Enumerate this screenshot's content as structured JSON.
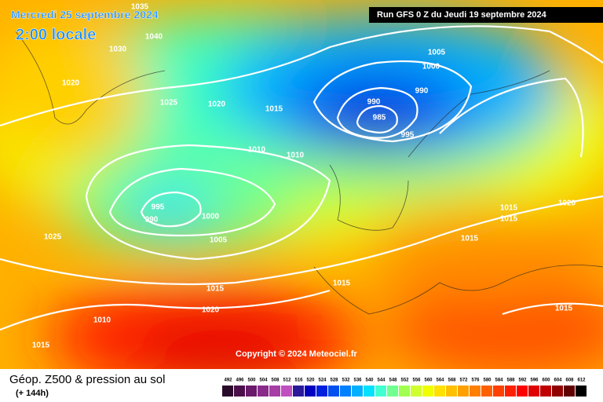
{
  "header": {
    "date": "Mercredi 25 septembre 2024",
    "time": "2:00 locale",
    "run": "Run GFS 0 Z du Jeudi 19 septembre 2024",
    "copyright": "Copyright © 2024 Meteociel.fr"
  },
  "footer": {
    "title": "Géop. Z500 & pression au sol",
    "lead": "(+ 144h)"
  },
  "isobar_labels": [
    1035,
    1040,
    1030,
    1020,
    1025,
    1020,
    1015,
    1005,
    1000,
    990,
    990,
    985,
    995,
    1010,
    1010,
    995,
    990,
    1000,
    1005,
    1025,
    1015,
    1020,
    1015,
    1015,
    1015,
    1015,
    1020,
    1010,
    1015,
    1015
  ],
  "colorbar": {
    "values": [
      492,
      496,
      500,
      504,
      508,
      512,
      516,
      520,
      524,
      528,
      532,
      536,
      540,
      544,
      548,
      552,
      556,
      560,
      564,
      568,
      572,
      576,
      580,
      584,
      588,
      592,
      596,
      600,
      604,
      608,
      612
    ],
    "colors": [
      "#2a0a2a",
      "#4b0f4b",
      "#6a1a6a",
      "#8a2a8a",
      "#a63ea6",
      "#c050c0",
      "#2a1a9a",
      "#0000c0",
      "#0020e0",
      "#0050f0",
      "#0080ff",
      "#00b0ff",
      "#00e0ff",
      "#40ffd0",
      "#70ff90",
      "#a0ff50",
      "#d0ff30",
      "#f0ff00",
      "#ffe000",
      "#ffc000",
      "#ffa000",
      "#ff8000",
      "#ff6000",
      "#ff4000",
      "#ff2000",
      "#ff0000",
      "#e00000",
      "#c00000",
      "#900000",
      "#600000",
      "#000000"
    ]
  }
}
